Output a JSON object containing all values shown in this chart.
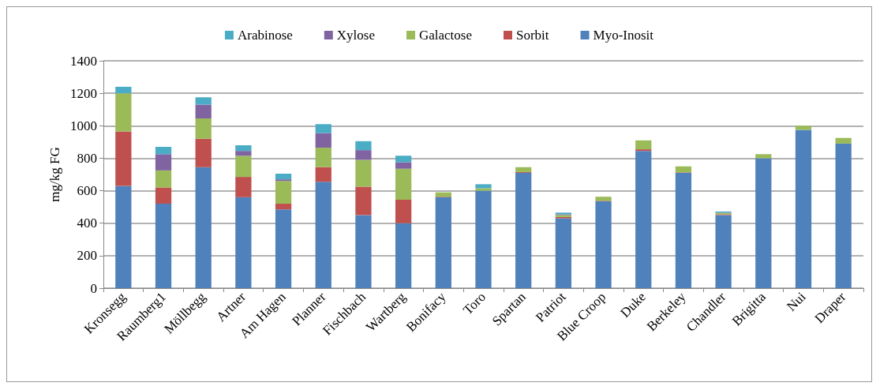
{
  "chart_data": {
    "type": "bar",
    "stacked": true,
    "ylabel": "mg/kg FG",
    "categories": [
      "Kronsegg",
      "Raumberg1",
      "Möllbegg",
      "Artner",
      "Am Hagen",
      "Planner",
      "Fischbach",
      "Wartberg",
      "Bonifacy",
      "Toro",
      "Spartan",
      "Patriot",
      "Blue Croop",
      "Duke",
      "Berkeley",
      "Chandler",
      "Brigitta",
      "Nui",
      "Draper"
    ],
    "series": [
      {
        "name": "Myo-Inosit",
        "color": "#4f81bd",
        "values": [
          630,
          520,
          745,
          560,
          485,
          655,
          450,
          400,
          560,
          600,
          710,
          430,
          535,
          845,
          710,
          450,
          800,
          975,
          890
        ]
      },
      {
        "name": "Sorbit",
        "color": "#c0504d",
        "values": [
          335,
          100,
          175,
          125,
          35,
          90,
          175,
          145,
          3,
          0,
          5,
          8,
          3,
          10,
          3,
          5,
          0,
          0,
          0
        ]
      },
      {
        "name": "Galactose",
        "color": "#9bbb59",
        "values": [
          235,
          105,
          125,
          130,
          140,
          120,
          165,
          190,
          27,
          15,
          30,
          12,
          25,
          55,
          37,
          8,
          25,
          25,
          35
        ]
      },
      {
        "name": "Xylose",
        "color": "#8064a2",
        "values": [
          0,
          100,
          85,
          30,
          10,
          90,
          60,
          40,
          0,
          0,
          0,
          5,
          0,
          0,
          0,
          2,
          0,
          0,
          0
        ]
      },
      {
        "name": "Arabinose",
        "color": "#4bacc6",
        "values": [
          40,
          45,
          45,
          35,
          35,
          55,
          55,
          40,
          0,
          25,
          0,
          10,
          0,
          0,
          0,
          7,
          0,
          0,
          0
        ]
      }
    ],
    "ylim": [
      0,
      1400
    ],
    "yticks": [
      0,
      200,
      400,
      600,
      800,
      1000,
      1200,
      1400
    ],
    "grid": "y",
    "legend": "top"
  }
}
